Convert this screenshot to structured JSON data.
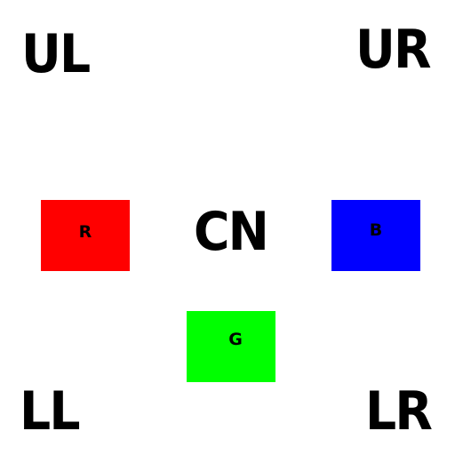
{
  "labels": {
    "upper_left": "UL",
    "upper_right": "UR",
    "center": "CN",
    "lower_left": "LL",
    "lower_right": "LR"
  },
  "boxes": {
    "red": {
      "label": "R",
      "color": "#ff0000"
    },
    "blue": {
      "label": "B",
      "color": "#0000ff"
    },
    "green": {
      "label": "G",
      "color": "#00ff00"
    }
  },
  "colors": {
    "background": "#ffffff",
    "text": "#000000"
  }
}
